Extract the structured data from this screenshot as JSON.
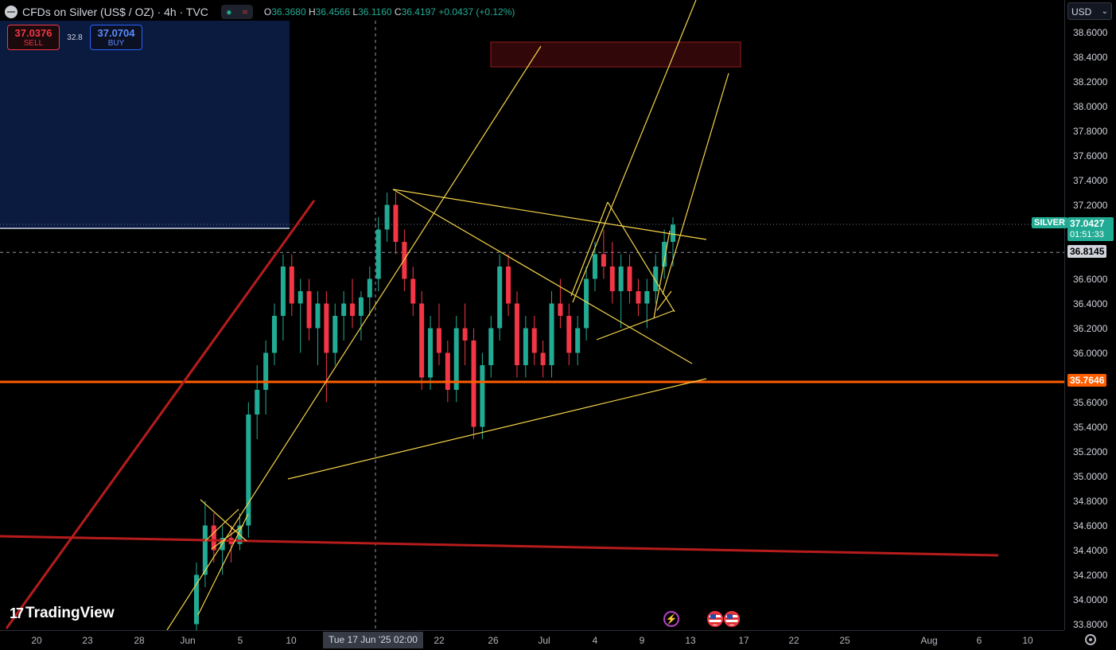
{
  "header": {
    "title": "CFDs on Silver (US$ / OZ) · 4h · TVC",
    "ohlc": {
      "o_label": "O",
      "o": "36.3680",
      "h_label": "H",
      "h": "36.4566",
      "l_label": "L",
      "l": "36.1160",
      "c_label": "C",
      "c": "36.4197",
      "change": "+0.0437 (+0.12%)"
    },
    "icons": [
      "symbol-icon",
      "market-open-dot-icon",
      "data-wave-icon"
    ]
  },
  "trade": {
    "sell_price": "37.0376",
    "sell_label": "SELL",
    "spread": "32.8",
    "buy_price": "37.0704",
    "buy_label": "BUY"
  },
  "price_axis": {
    "currency": "USD",
    "ticks": [
      "38.6000",
      "38.4000",
      "38.2000",
      "38.0000",
      "37.8000",
      "37.6000",
      "37.4000",
      "37.2000",
      "36.6000",
      "36.4000",
      "36.2000",
      "36.0000",
      "35.6000",
      "35.4000",
      "35.2000",
      "35.0000",
      "34.8000",
      "34.6000",
      "34.4000",
      "34.2000",
      "34.0000",
      "33.8000"
    ],
    "symbol_label": "SILVER",
    "last_price": "37.0427",
    "countdown": "01:51:33",
    "crosshair_price": "36.8145",
    "level_price": "35.7646"
  },
  "time_axis": {
    "ticks": [
      "20",
      "23",
      "28",
      "Jun",
      "5",
      "10",
      "22",
      "26",
      "Jul",
      "4",
      "9",
      "13",
      "17",
      "22",
      "25",
      "Aug",
      "6",
      "10"
    ],
    "cursor_label": "Tue 17 Jun '25   02:00"
  },
  "logo": {
    "text": "TradingView"
  },
  "colors": {
    "background": "#000000",
    "up": "#22ab94",
    "down": "#f23645",
    "trendline": "#f5d44a",
    "support": "#ff5d00",
    "channel": "#b71c1c",
    "zone": "#0d1f4a"
  },
  "chart_data": {
    "type": "candlestick",
    "symbol": "SILVER",
    "timeframe": "4h",
    "ylim": [
      33.7,
      38.8
    ],
    "xlabel": "",
    "ylabel": "",
    "ohlc": [
      [
        33.8,
        34.3,
        33.7,
        34.2
      ],
      [
        34.2,
        34.8,
        34.1,
        34.6
      ],
      [
        34.6,
        34.7,
        34.3,
        34.4
      ],
      [
        34.4,
        34.6,
        34.2,
        34.5
      ],
      [
        34.5,
        34.6,
        34.3,
        34.45
      ],
      [
        34.45,
        34.7,
        34.4,
        34.6
      ],
      [
        34.6,
        35.6,
        34.5,
        35.5
      ],
      [
        35.5,
        35.9,
        35.3,
        35.7
      ],
      [
        35.7,
        36.1,
        35.5,
        36.0
      ],
      [
        36.0,
        36.4,
        35.9,
        36.3
      ],
      [
        36.3,
        36.8,
        36.1,
        36.7
      ],
      [
        36.7,
        36.8,
        36.3,
        36.4
      ],
      [
        36.4,
        36.6,
        36.0,
        36.5
      ],
      [
        36.5,
        36.6,
        36.1,
        36.2
      ],
      [
        36.2,
        36.5,
        35.9,
        36.4
      ],
      [
        36.4,
        36.5,
        35.6,
        36.0
      ],
      [
        36.0,
        36.4,
        35.9,
        36.3
      ],
      [
        36.3,
        36.5,
        36.1,
        36.4
      ],
      [
        36.4,
        36.6,
        36.2,
        36.3
      ],
      [
        36.3,
        36.5,
        36.1,
        36.45
      ],
      [
        36.45,
        36.7,
        36.3,
        36.6
      ],
      [
        36.6,
        37.1,
        36.5,
        37.0
      ],
      [
        37.0,
        37.3,
        36.9,
        37.2
      ],
      [
        37.2,
        37.3,
        36.8,
        36.9
      ],
      [
        36.9,
        37.0,
        36.5,
        36.6
      ],
      [
        36.6,
        36.7,
        36.3,
        36.4
      ],
      [
        36.4,
        36.5,
        35.7,
        35.8
      ],
      [
        35.8,
        36.3,
        35.7,
        36.2
      ],
      [
        36.2,
        36.4,
        35.9,
        36.0
      ],
      [
        36.0,
        36.1,
        35.6,
        35.7
      ],
      [
        35.7,
        36.3,
        35.6,
        36.2
      ],
      [
        36.2,
        36.4,
        35.9,
        36.1
      ],
      [
        36.1,
        36.2,
        35.3,
        35.4
      ],
      [
        35.4,
        36.0,
        35.3,
        35.9
      ],
      [
        35.9,
        36.3,
        35.8,
        36.2
      ],
      [
        36.2,
        36.8,
        36.1,
        36.7
      ],
      [
        36.7,
        36.8,
        36.3,
        36.4
      ],
      [
        36.4,
        36.5,
        35.8,
        35.9
      ],
      [
        35.9,
        36.3,
        35.8,
        36.2
      ],
      [
        36.2,
        36.3,
        35.9,
        36.0
      ],
      [
        36.0,
        36.1,
        35.8,
        35.9
      ],
      [
        35.9,
        36.5,
        35.8,
        36.4
      ],
      [
        36.4,
        36.6,
        36.2,
        36.3
      ],
      [
        36.3,
        36.4,
        35.9,
        36.0
      ],
      [
        36.0,
        36.3,
        35.9,
        36.2
      ],
      [
        36.2,
        36.7,
        36.1,
        36.6
      ],
      [
        36.6,
        36.9,
        36.5,
        36.8
      ],
      [
        36.8,
        37.0,
        36.6,
        36.7
      ],
      [
        36.7,
        36.9,
        36.4,
        36.5
      ],
      [
        36.5,
        36.8,
        36.2,
        36.7
      ],
      [
        36.7,
        36.8,
        36.4,
        36.5
      ],
      [
        36.5,
        36.6,
        36.3,
        36.4
      ],
      [
        36.4,
        36.6,
        36.2,
        36.5
      ],
      [
        36.5,
        36.8,
        36.4,
        36.7
      ],
      [
        36.7,
        37.0,
        36.6,
        36.9
      ],
      [
        36.9,
        37.1,
        36.7,
        37.04
      ]
    ],
    "levels": [
      {
        "name": "crosshair",
        "value": 36.8145
      },
      {
        "name": "support",
        "value": 35.7646
      }
    ]
  }
}
